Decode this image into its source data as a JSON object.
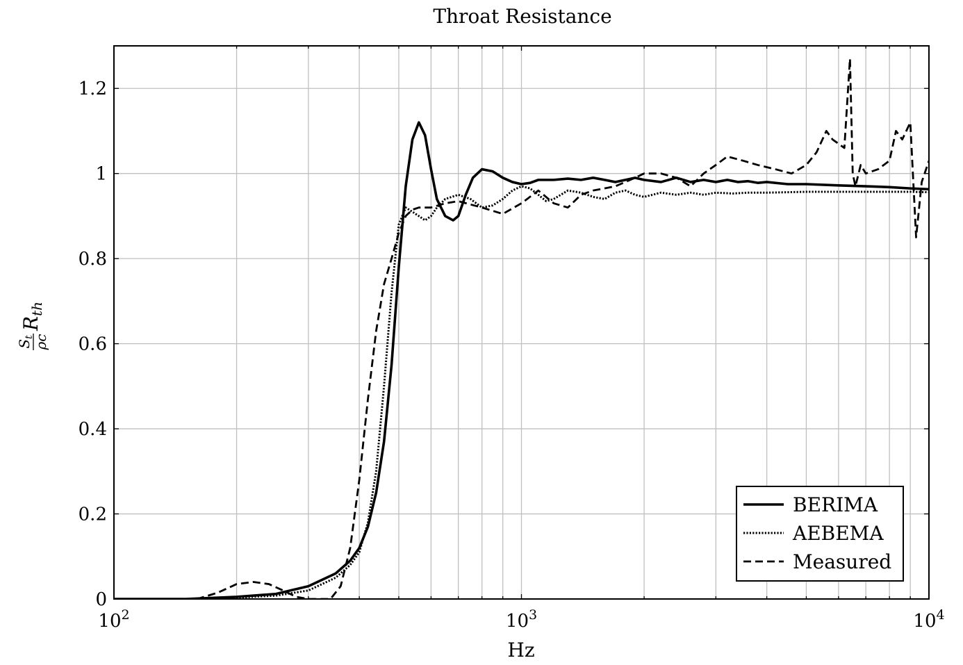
{
  "chart_data": {
    "type": "line",
    "title": "Throat Resistance",
    "xlabel": "Hz",
    "ylabel": "S_t / ρc R_th",
    "ylabel_parts": {
      "num": "S",
      "num_sub": "t",
      "den": "ρc",
      "main": "R",
      "main_sub": "th"
    },
    "xscale": "log",
    "xlim": [
      100,
      10000
    ],
    "ylim": [
      0,
      1.3
    ],
    "grid": true,
    "legend_position": "bottom-right",
    "x_ticks": [
      {
        "value": 100,
        "base": "10",
        "exp": "2"
      },
      {
        "value": 1000,
        "base": "10",
        "exp": "3"
      },
      {
        "value": 10000,
        "base": "10",
        "exp": "4"
      }
    ],
    "y_ticks": [
      {
        "value": 0,
        "label": "0"
      },
      {
        "value": 0.2,
        "label": "0.2"
      },
      {
        "value": 0.4,
        "label": "0.4"
      },
      {
        "value": 0.6,
        "label": "0.6"
      },
      {
        "value": 0.8,
        "label": "0.8"
      },
      {
        "value": 1.0,
        "label": "1"
      },
      {
        "value": 1.2,
        "label": "1.2"
      }
    ],
    "series": [
      {
        "name": "BERIMA",
        "style": "solid",
        "color": "#000000",
        "x": [
          100,
          150,
          200,
          250,
          300,
          350,
          380,
          400,
          420,
          440,
          460,
          480,
          500,
          520,
          540,
          560,
          580,
          600,
          620,
          650,
          680,
          700,
          730,
          760,
          800,
          850,
          900,
          950,
          1000,
          1050,
          1100,
          1200,
          1300,
          1400,
          1500,
          1600,
          1700,
          1800,
          1900,
          2000,
          2200,
          2400,
          2600,
          2800,
          3000,
          3200,
          3400,
          3600,
          3800,
          4000,
          4500,
          5000,
          6000,
          7000,
          8000,
          9000,
          10000
        ],
        "y": [
          0.0,
          0.0,
          0.005,
          0.012,
          0.03,
          0.06,
          0.09,
          0.12,
          0.17,
          0.25,
          0.37,
          0.55,
          0.78,
          0.97,
          1.08,
          1.12,
          1.09,
          1.01,
          0.94,
          0.9,
          0.89,
          0.9,
          0.95,
          0.99,
          1.01,
          1.005,
          0.99,
          0.98,
          0.975,
          0.978,
          0.985,
          0.985,
          0.988,
          0.985,
          0.99,
          0.985,
          0.98,
          0.985,
          0.99,
          0.985,
          0.98,
          0.99,
          0.98,
          0.985,
          0.98,
          0.985,
          0.98,
          0.982,
          0.978,
          0.98,
          0.975,
          0.975,
          0.972,
          0.97,
          0.968,
          0.965,
          0.963
        ]
      },
      {
        "name": "AEBEMA",
        "style": "dotted",
        "color": "#000000",
        "x": [
          100,
          150,
          200,
          250,
          300,
          350,
          380,
          400,
          420,
          440,
          460,
          480,
          500,
          520,
          540,
          560,
          580,
          600,
          620,
          650,
          700,
          750,
          800,
          850,
          900,
          950,
          1000,
          1050,
          1100,
          1150,
          1200,
          1300,
          1400,
          1500,
          1600,
          1700,
          1800,
          1900,
          2000,
          2200,
          2400,
          2600,
          2800,
          3000,
          3300,
          3600,
          4000,
          4500,
          5000,
          6000,
          7000,
          8000,
          9000,
          10000
        ],
        "y": [
          0.0,
          0.0,
          0.003,
          0.008,
          0.02,
          0.05,
          0.08,
          0.11,
          0.18,
          0.3,
          0.5,
          0.72,
          0.88,
          0.92,
          0.91,
          0.9,
          0.89,
          0.9,
          0.92,
          0.94,
          0.95,
          0.94,
          0.92,
          0.925,
          0.94,
          0.96,
          0.97,
          0.965,
          0.95,
          0.935,
          0.94,
          0.96,
          0.955,
          0.945,
          0.94,
          0.955,
          0.96,
          0.95,
          0.945,
          0.955,
          0.95,
          0.955,
          0.95,
          0.955,
          0.953,
          0.955,
          0.955,
          0.956,
          0.957,
          0.957,
          0.957,
          0.957,
          0.957,
          0.956
        ]
      },
      {
        "name": "Measured",
        "style": "dashed",
        "color": "#000000",
        "x": [
          100,
          160,
          180,
          200,
          220,
          240,
          260,
          280,
          300,
          320,
          340,
          360,
          380,
          400,
          420,
          440,
          460,
          480,
          500,
          520,
          540,
          560,
          600,
          650,
          700,
          800,
          900,
          1000,
          1100,
          1200,
          1300,
          1400,
          1500,
          1700,
          1900,
          2000,
          2200,
          2400,
          2600,
          2800,
          3000,
          3200,
          3500,
          3800,
          4200,
          4600,
          5000,
          5300,
          5600,
          5800,
          6000,
          6200,
          6400,
          6500,
          6600,
          6800,
          7000,
          7500,
          8000,
          8300,
          8600,
          9000,
          9300,
          9600,
          10000
        ],
        "y": [
          0.0,
          0.0,
          0.015,
          0.035,
          0.04,
          0.035,
          0.02,
          0.005,
          0.0,
          0.0,
          0.0,
          0.03,
          0.12,
          0.28,
          0.47,
          0.63,
          0.74,
          0.8,
          0.86,
          0.9,
          0.915,
          0.92,
          0.92,
          0.93,
          0.935,
          0.92,
          0.905,
          0.93,
          0.96,
          0.93,
          0.92,
          0.95,
          0.96,
          0.97,
          0.99,
          1.0,
          1.0,
          0.99,
          0.97,
          1.0,
          1.02,
          1.04,
          1.03,
          1.02,
          1.01,
          1.0,
          1.02,
          1.05,
          1.1,
          1.08,
          1.07,
          1.06,
          1.27,
          1.0,
          0.97,
          1.02,
          1.0,
          1.01,
          1.03,
          1.1,
          1.08,
          1.12,
          0.85,
          0.98,
          1.03
        ]
      }
    ]
  }
}
